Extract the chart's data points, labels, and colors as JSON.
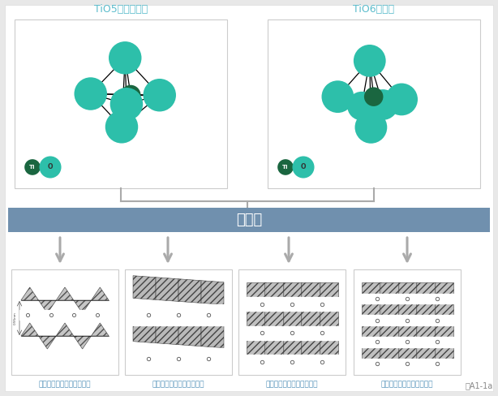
{
  "bg_color": "#e8e8e8",
  "title_teal": "#5bbccc",
  "atom_teal": "#2dbfaa",
  "atom_dark": "#1a6640",
  "banner_color": "#7090ae",
  "banner_text": "連　鎖",
  "banner_text_color": "#ffffff",
  "left_title": "TiO5三角両錐体",
  "right_title": "TiO6八面体",
  "arrow_color": "#aaaaaa",
  "box_edge": "#cccccc",
  "bottom_labels": [
    "ニチタン酸カリウム構造図",
    "四チタン酸カリウム構造図",
    "六チタン酸カリウム構造図",
    "八チタン酸カリウム構造図"
  ],
  "caption": "図A1-1a",
  "label_color": "#5090b8"
}
